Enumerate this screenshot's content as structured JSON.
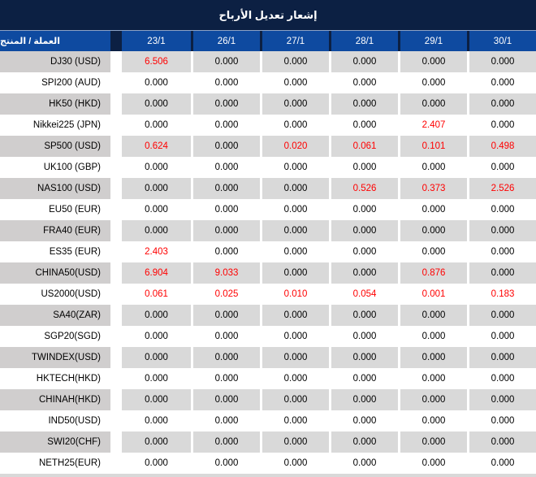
{
  "title": "إشعار تعديل الأرباح",
  "colors": {
    "title_bg": "#0c2043",
    "header_bg": "#0e4aa0",
    "header_divider": "#8ba2c6",
    "row_gray": "#d9d9d9",
    "product_gray": "#d0cece",
    "red": "#ff0000",
    "text": "#000000",
    "header_text": "#ffffff"
  },
  "header": {
    "product_label": "العملة / المنتج",
    "dates": [
      "23/1",
      "26/1",
      "27/1",
      "28/1",
      "29/1",
      "30/1"
    ]
  },
  "rows": [
    {
      "product": "DJ30 (USD)",
      "values": [
        "6.506",
        "0.000",
        "0.000",
        "0.000",
        "0.000",
        "0.000"
      ],
      "red": [
        1,
        0,
        0,
        0,
        0,
        0
      ]
    },
    {
      "product": "SPI200 (AUD)",
      "values": [
        "0.000",
        "0.000",
        "0.000",
        "0.000",
        "0.000",
        "0.000"
      ],
      "red": [
        0,
        0,
        0,
        0,
        0,
        0
      ]
    },
    {
      "product": "HK50 (HKD)",
      "values": [
        "0.000",
        "0.000",
        "0.000",
        "0.000",
        "0.000",
        "0.000"
      ],
      "red": [
        0,
        0,
        0,
        0,
        0,
        0
      ]
    },
    {
      "product": "Nikkei225 (JPN)",
      "values": [
        "0.000",
        "0.000",
        "0.000",
        "0.000",
        "2.407",
        "0.000"
      ],
      "red": [
        0,
        0,
        0,
        0,
        1,
        0
      ]
    },
    {
      "product": "SP500 (USD)",
      "values": [
        "0.624",
        "0.000",
        "0.020",
        "0.061",
        "0.101",
        "0.498"
      ],
      "red": [
        1,
        0,
        1,
        1,
        1,
        1
      ]
    },
    {
      "product": "UK100 (GBP)",
      "values": [
        "0.000",
        "0.000",
        "0.000",
        "0.000",
        "0.000",
        "0.000"
      ],
      "red": [
        0,
        0,
        0,
        0,
        0,
        0
      ]
    },
    {
      "product": "NAS100 (USD)",
      "values": [
        "0.000",
        "0.000",
        "0.000",
        "0.526",
        "0.373",
        "2.526"
      ],
      "red": [
        0,
        0,
        0,
        1,
        1,
        1
      ]
    },
    {
      "product": "EU50 (EUR)",
      "values": [
        "0.000",
        "0.000",
        "0.000",
        "0.000",
        "0.000",
        "0.000"
      ],
      "red": [
        0,
        0,
        0,
        0,
        0,
        0
      ]
    },
    {
      "product": "FRA40 (EUR)",
      "values": [
        "0.000",
        "0.000",
        "0.000",
        "0.000",
        "0.000",
        "0.000"
      ],
      "red": [
        0,
        0,
        0,
        0,
        0,
        0
      ]
    },
    {
      "product": "ES35 (EUR)",
      "values": [
        "2.403",
        "0.000",
        "0.000",
        "0.000",
        "0.000",
        "0.000"
      ],
      "red": [
        1,
        0,
        0,
        0,
        0,
        0
      ]
    },
    {
      "product": "CHINA50(USD)",
      "values": [
        "6.904",
        "9.033",
        "0.000",
        "0.000",
        "0.876",
        "0.000"
      ],
      "red": [
        1,
        1,
        0,
        0,
        1,
        0
      ]
    },
    {
      "product": "US2000(USD)",
      "values": [
        "0.061",
        "0.025",
        "0.010",
        "0.054",
        "0.001",
        "0.183"
      ],
      "red": [
        1,
        1,
        1,
        1,
        1,
        1
      ]
    },
    {
      "product": "SA40(ZAR)",
      "values": [
        "0.000",
        "0.000",
        "0.000",
        "0.000",
        "0.000",
        "0.000"
      ],
      "red": [
        0,
        0,
        0,
        0,
        0,
        0
      ]
    },
    {
      "product": "SGP20(SGD)",
      "values": [
        "0.000",
        "0.000",
        "0.000",
        "0.000",
        "0.000",
        "0.000"
      ],
      "red": [
        0,
        0,
        0,
        0,
        0,
        0
      ]
    },
    {
      "product": "TWINDEX(USD)",
      "values": [
        "0.000",
        "0.000",
        "0.000",
        "0.000",
        "0.000",
        "0.000"
      ],
      "red": [
        0,
        0,
        0,
        0,
        0,
        0
      ]
    },
    {
      "product": "HKTECH(HKD)",
      "values": [
        "0.000",
        "0.000",
        "0.000",
        "0.000",
        "0.000",
        "0.000"
      ],
      "red": [
        0,
        0,
        0,
        0,
        0,
        0
      ]
    },
    {
      "product": "CHINAH(HKD)",
      "values": [
        "0.000",
        "0.000",
        "0.000",
        "0.000",
        "0.000",
        "0.000"
      ],
      "red": [
        0,
        0,
        0,
        0,
        0,
        0
      ]
    },
    {
      "product": "IND50(USD)",
      "values": [
        "0.000",
        "0.000",
        "0.000",
        "0.000",
        "0.000",
        "0.000"
      ],
      "red": [
        0,
        0,
        0,
        0,
        0,
        0
      ]
    },
    {
      "product": "SWI20(CHF)",
      "values": [
        "0.000",
        "0.000",
        "0.000",
        "0.000",
        "0.000",
        "0.000"
      ],
      "red": [
        0,
        0,
        0,
        0,
        0,
        0
      ]
    },
    {
      "product": "NETH25(EUR)",
      "values": [
        "0.000",
        "0.000",
        "0.000",
        "0.000",
        "0.000",
        "0.000"
      ],
      "red": [
        0,
        0,
        0,
        0,
        0,
        0
      ]
    }
  ]
}
